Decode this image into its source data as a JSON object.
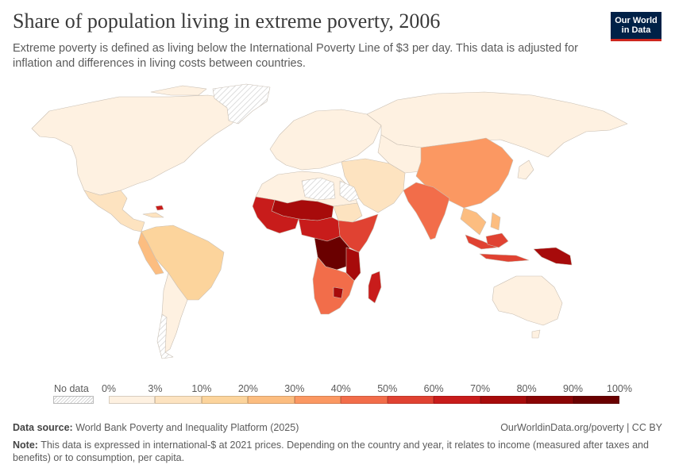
{
  "header": {
    "title": "Share of population living in extreme poverty, 2006",
    "subtitle": "Extreme poverty is defined as living below the International Poverty Line of $3 per day. This data is adjusted for inflation and differences in living costs between countries.",
    "logo_line1": "Our World",
    "logo_line2": "in Data"
  },
  "legend": {
    "no_data_label": "No data",
    "ticks": [
      "0%",
      "3%",
      "10%",
      "20%",
      "30%",
      "40%",
      "50%",
      "60%",
      "70%",
      "80%",
      "90%",
      "100%"
    ],
    "colors": [
      "#fef1e1",
      "#fde3c0",
      "#fcd49c",
      "#fcbd80",
      "#fb9862",
      "#f26d4a",
      "#e04232",
      "#c81c1b",
      "#a70b0b",
      "#8a0404",
      "#6a0000"
    ]
  },
  "footer": {
    "source_label": "Data source:",
    "source_text": "World Bank Poverty and Inequality Platform (2025)",
    "credit": "OurWorldinData.org/poverty | CC BY",
    "note_label": "Note:",
    "note_text": "This data is expressed in international-$ at 2021 prices. Depending on the country and year, it relates to income (measured after taxes and benefits) or to consumption, per capita."
  },
  "map_regions": [
    {
      "name": "north-america",
      "color": "#fef1e1"
    },
    {
      "name": "greenland",
      "color": "nodata"
    },
    {
      "name": "mexico-central-america",
      "color": "#fde3c0"
    },
    {
      "name": "south-america",
      "color": "#fcd49c"
    },
    {
      "name": "andes",
      "color": "#fcbd80"
    },
    {
      "name": "southern-cone",
      "color": "#fef1e1"
    },
    {
      "name": "europe",
      "color": "#fef1e1"
    },
    {
      "name": "russia",
      "color": "#fef1e1"
    },
    {
      "name": "north-africa",
      "color": "#fef1e1"
    },
    {
      "name": "sahara-nodata",
      "color": "nodata"
    },
    {
      "name": "west-africa",
      "color": "#c81c1b"
    },
    {
      "name": "sahel",
      "color": "#a70b0b"
    },
    {
      "name": "east-africa",
      "color": "#e04232"
    },
    {
      "name": "congo-basin",
      "color": "#6a0000"
    },
    {
      "name": "southern-africa",
      "color": "#f26d4a"
    },
    {
      "name": "madagascar",
      "color": "#c81c1b"
    },
    {
      "name": "middle-east",
      "color": "#fde3c0"
    },
    {
      "name": "central-asia",
      "color": "#fef1e1"
    },
    {
      "name": "china",
      "color": "#fb9862"
    },
    {
      "name": "india",
      "color": "#f26d4a"
    },
    {
      "name": "southeast-asia",
      "color": "#fcbd80"
    },
    {
      "name": "indonesia",
      "color": "#e04232"
    },
    {
      "name": "papua-new-guinea",
      "color": "#a70b0b"
    },
    {
      "name": "australia",
      "color": "#fef1e1"
    },
    {
      "name": "japan-korea",
      "color": "#fef1e1"
    }
  ]
}
